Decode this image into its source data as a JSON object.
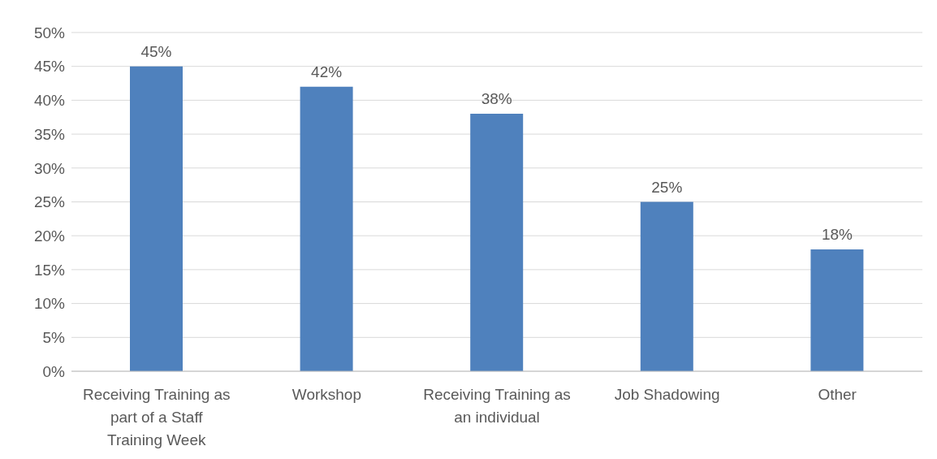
{
  "chart_data": {
    "type": "bar",
    "categories": [
      "Receiving Training as part of a Staff Training Week",
      "Workshop",
      "Receiving Training as an individual",
      "Job Shadowing",
      "Other"
    ],
    "values": [
      45,
      42,
      38,
      25,
      18
    ],
    "value_labels": [
      "45%",
      "42%",
      "38%",
      "25%",
      "18%"
    ],
    "color": "#4f81bd",
    "ylim": [
      0,
      50
    ],
    "yticks": [
      {
        "value": 0,
        "label": "0%"
      },
      {
        "value": 5,
        "label": "5%"
      },
      {
        "value": 10,
        "label": "10%"
      },
      {
        "value": 15,
        "label": "15%"
      },
      {
        "value": 20,
        "label": "20%"
      },
      {
        "value": 25,
        "label": "25%"
      },
      {
        "value": 30,
        "label": "30%"
      },
      {
        "value": 35,
        "label": "35%"
      },
      {
        "value": 40,
        "label": "40%"
      },
      {
        "value": 45,
        "label": "45%"
      },
      {
        "value": 50,
        "label": "50%"
      }
    ],
    "grid": "y",
    "legend": false
  }
}
